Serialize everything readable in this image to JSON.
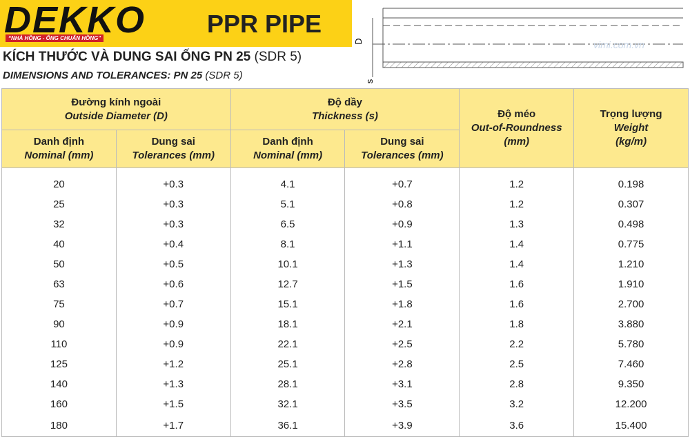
{
  "header": {
    "brand": "DEKKO",
    "slogan": "“NHÀ HỒNG - ỐNG CHUẨN HỒNG”",
    "product": "PPR PIPE",
    "title": "KÍCH THƯỚC VÀ DUNG SAI ỐNG PN 25",
    "title_suffix": "(SDR 5)",
    "subtitle": "DIMENSIONS AND TOLERANCES: PN 25",
    "subtitle_suffix": "(SDR 5)"
  },
  "diagram": {
    "d_label": "D",
    "s_label": "s",
    "watermark": "vimi.com.vn"
  },
  "table": {
    "groups": [
      {
        "vi": "Đường kính ngoài",
        "en": "Outside Diameter (D)"
      },
      {
        "vi": "Độ dầy",
        "en": "Thickness (s)"
      }
    ],
    "columns": [
      {
        "vi": "Danh định",
        "en": "Nominal (mm)"
      },
      {
        "vi": "Dung sai",
        "en": "Tolerances (mm)"
      },
      {
        "vi": "Danh định",
        "en": "Nominal (mm)"
      },
      {
        "vi": "Dung sai",
        "en": "Tolerances (mm)"
      },
      {
        "vi": "Độ méo",
        "en": "Out-of-Roundness",
        "unit": "(mm)"
      },
      {
        "vi": "Trọng lượng",
        "en": "Weight",
        "unit": "(kg/m)"
      }
    ],
    "rows": [
      [
        "20",
        "+0.3",
        "4.1",
        "+0.7",
        "1.2",
        "0.198"
      ],
      [
        "25",
        "+0.3",
        "5.1",
        "+0.8",
        "1.2",
        "0.307"
      ],
      [
        "32",
        "+0.3",
        "6.5",
        "+0.9",
        "1.3",
        "0.498"
      ],
      [
        "40",
        "+0.4",
        "8.1",
        "+1.1",
        "1.4",
        "0.775"
      ],
      [
        "50",
        "+0.5",
        "10.1",
        "+1.3",
        "1.4",
        "1.210"
      ],
      [
        "63",
        "+0.6",
        "12.7",
        "+1.5",
        "1.6",
        "1.910"
      ],
      [
        "75",
        "+0.7",
        "15.1",
        "+1.8",
        "1.6",
        "2.700"
      ],
      [
        "90",
        "+0.9",
        "18.1",
        "+2.1",
        "1.8",
        "3.880"
      ],
      [
        "110",
        "+0.9",
        "22.1",
        "+2.5",
        "2.2",
        "5.780"
      ],
      [
        "125",
        "+1.2",
        "25.1",
        "+2.8",
        "2.5",
        "7.460"
      ],
      [
        "140",
        "+1.3",
        "28.1",
        "+3.1",
        "2.8",
        "9.350"
      ],
      [
        "160",
        "+1.5",
        "32.1",
        "+3.5",
        "3.2",
        "12.200"
      ],
      [
        "180",
        "+1.7",
        "36.1",
        "+3.9",
        "3.6",
        "15.400"
      ]
    ]
  }
}
